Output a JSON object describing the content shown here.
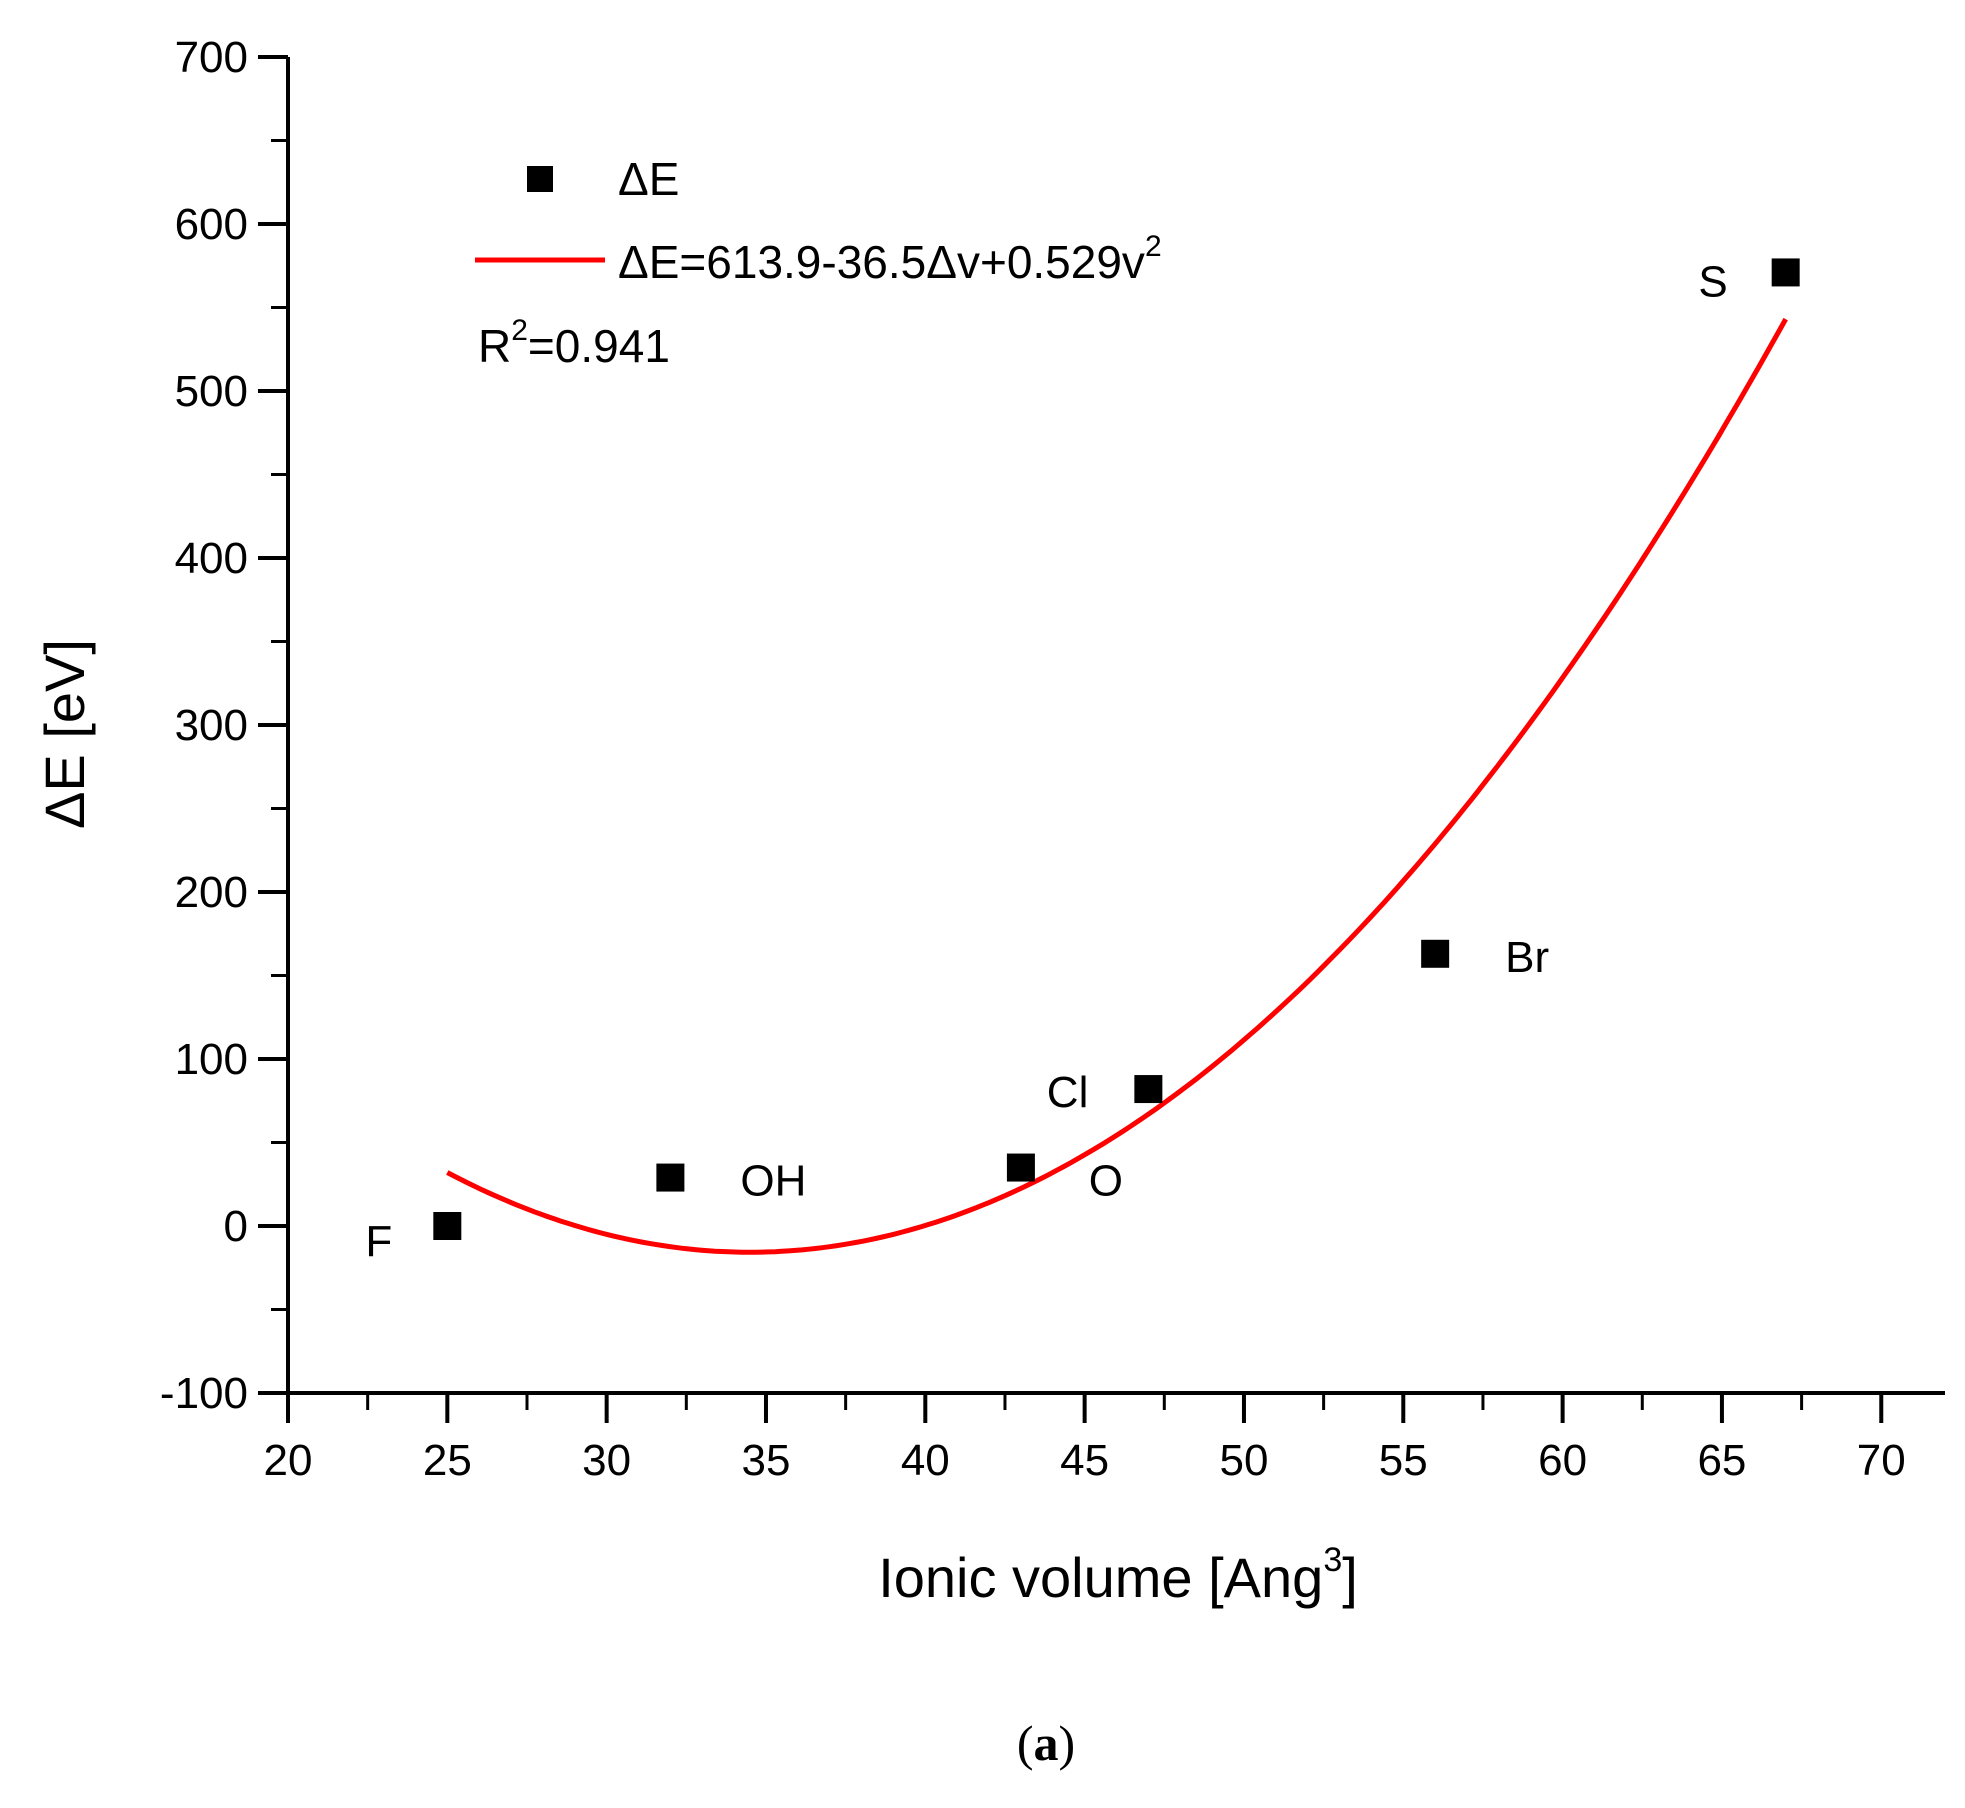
{
  "chart_data": {
    "type": "scatter",
    "xlabel": "Ionic volume [Ang",
    "xlabel_sup": "3",
    "xlabel_end": "]",
    "ylabel": "ΔE [eV]",
    "xlim": [
      20,
      72
    ],
    "ylim": [
      -100,
      700
    ],
    "xticks": [
      20,
      25,
      30,
      35,
      40,
      45,
      50,
      55,
      60,
      65,
      70
    ],
    "yticks": [
      -100,
      0,
      100,
      200,
      300,
      400,
      500,
      600,
      700
    ],
    "x_minor_step": 2.5,
    "y_minor_step": 50,
    "grid": false,
    "legend_position": "top-left",
    "series": [
      {
        "name": "ΔE",
        "kind": "scatter",
        "marker": "square",
        "color": "#000000",
        "points": [
          {
            "label": "F",
            "x": 25,
            "y": 0
          },
          {
            "label": "OH",
            "x": 32,
            "y": 29
          },
          {
            "label": "O",
            "x": 43,
            "y": 35
          },
          {
            "label": "Cl",
            "x": 47,
            "y": 82
          },
          {
            "label": "Br",
            "x": 56,
            "y": 163
          },
          {
            "label": "S",
            "x": 67,
            "y": 571
          }
        ]
      },
      {
        "name": "ΔE=613.9-36.5Δv+0.529v",
        "name_sup": "2",
        "kind": "fit",
        "color": "#ff0000",
        "coefficients": [
          613.9,
          -36.5,
          0.529
        ],
        "x_range": [
          25,
          67
        ]
      }
    ],
    "annotation": {
      "prefix": "R",
      "sup": "2",
      "suffix": "=0.941"
    }
  },
  "caption": {
    "open": "(",
    "letter": "a",
    "close": ")"
  }
}
